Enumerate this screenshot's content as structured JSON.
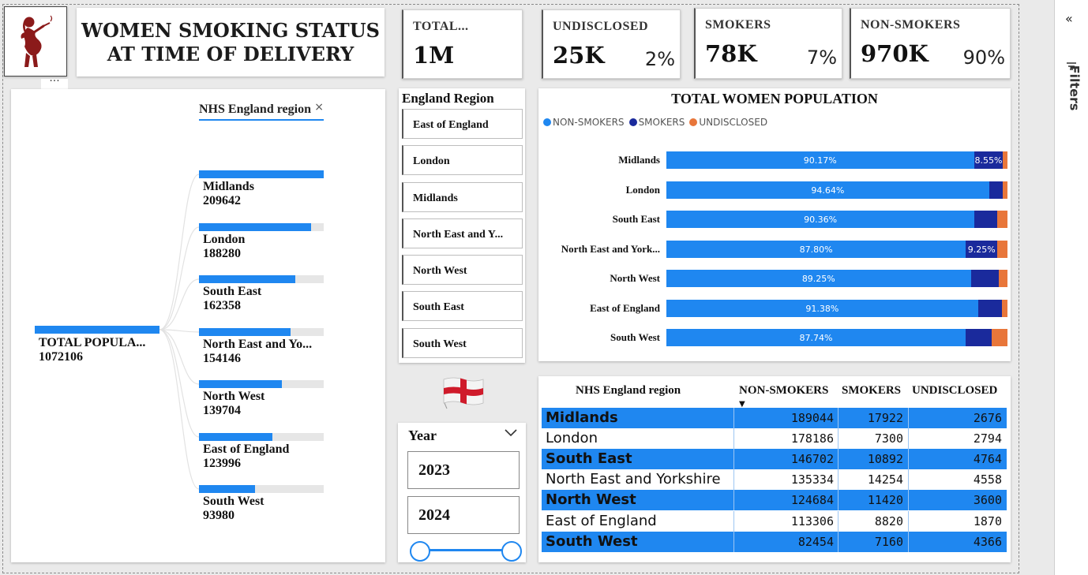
{
  "header": {
    "title_line1": "WOMEN SMOKING STATUS",
    "title_line2": "AT TIME OF DELIVERY"
  },
  "kpis": [
    {
      "label": "TOTAL...",
      "value": "1M",
      "pct": ""
    },
    {
      "label": "UNDISCLOSED",
      "value": "25K",
      "pct": "2%"
    },
    {
      "label": "SMOKERS",
      "value": "78K",
      "pct": "7%"
    },
    {
      "label": "NON-SMOKERS",
      "value": "970K",
      "pct": "90%"
    }
  ],
  "tree": {
    "filter_label": "NHS England region",
    "close_glyph": "×",
    "more_glyph": "···",
    "root_label": "TOTAL POPULA...",
    "root_value": "1072106",
    "nodes": [
      {
        "name": "Midlands",
        "value": "209642",
        "share": 1.0
      },
      {
        "name": "London",
        "value": "188280",
        "share": 0.898
      },
      {
        "name": "South East",
        "value": "162358",
        "share": 0.774
      },
      {
        "name": "North East and Yo...",
        "value": "154146",
        "share": 0.735
      },
      {
        "name": "North West",
        "value": "139704",
        "share": 0.666
      },
      {
        "name": "East of England",
        "value": "123996",
        "share": 0.591
      },
      {
        "name": "South West",
        "value": "93980",
        "share": 0.448
      }
    ]
  },
  "region_slicer": {
    "title": "England Region",
    "items": [
      "East of England",
      "London",
      "Midlands",
      "North East and Y...",
      "North West",
      "South East",
      "South West"
    ]
  },
  "year_slicer": {
    "title": "Year",
    "from": "2023",
    "to": "2024"
  },
  "colors": {
    "non_smokers": "#1f87f0",
    "smokers": "#1a2a9c",
    "undisclosed": "#e8763a"
  },
  "chart_data": {
    "type": "bar",
    "orientation": "horizontal",
    "stacked": "100%",
    "title": "TOTAL WOMEN POPULATION",
    "legend_position": "top-left",
    "categories": [
      "Midlands",
      "London",
      "South East",
      "North East and York...",
      "North West",
      "East of England",
      "South West"
    ],
    "series": [
      {
        "name": "NON-SMOKERS",
        "values": [
          90.17,
          94.64,
          90.36,
          87.8,
          89.25,
          91.38,
          87.74
        ],
        "labels": [
          "90.17%",
          "94.64%",
          "90.36%",
          "87.80%",
          "89.25%",
          "91.38%",
          "87.74%"
        ]
      },
      {
        "name": "SMOKERS",
        "values": [
          8.55,
          3.88,
          6.71,
          9.25,
          8.17,
          7.11,
          7.62
        ],
        "labels": [
          "8.55%",
          "",
          "",
          "9.25%",
          "",
          "",
          ""
        ]
      },
      {
        "name": "UNDISCLOSED",
        "values": [
          1.28,
          1.48,
          2.93,
          2.96,
          2.58,
          1.51,
          4.65
        ],
        "labels": [
          "",
          "",
          "",
          "",
          "",
          "",
          ""
        ]
      }
    ]
  },
  "table": {
    "headers": [
      "NHS England region",
      "NON-SMOKERS",
      "SMOKERS",
      "UNDISCLOSED"
    ],
    "sort_glyph": "▼",
    "rows": [
      {
        "region": "Midlands",
        "non_smokers": "189044",
        "smokers": "17922",
        "undisclosed": "2676",
        "highlight": true
      },
      {
        "region": "London",
        "non_smokers": "178186",
        "smokers": "7300",
        "undisclosed": "2794",
        "highlight": false
      },
      {
        "region": "South East",
        "non_smokers": "146702",
        "smokers": "10892",
        "undisclosed": "4764",
        "highlight": true
      },
      {
        "region": "North East and Yorkshire",
        "non_smokers": "135334",
        "smokers": "14254",
        "undisclosed": "4558",
        "highlight": false
      },
      {
        "region": "North West",
        "non_smokers": "124684",
        "smokers": "11420",
        "undisclosed": "3600",
        "highlight": true
      },
      {
        "region": "East of England",
        "non_smokers": "113306",
        "smokers": "8820",
        "undisclosed": "1870",
        "highlight": false
      },
      {
        "region": "South West",
        "non_smokers": "82454",
        "smokers": "7160",
        "undisclosed": "4366",
        "highlight": true
      }
    ]
  },
  "filters_pane": {
    "label": "Filters",
    "collapse_glyph": "«",
    "icon": "filter-icon"
  }
}
